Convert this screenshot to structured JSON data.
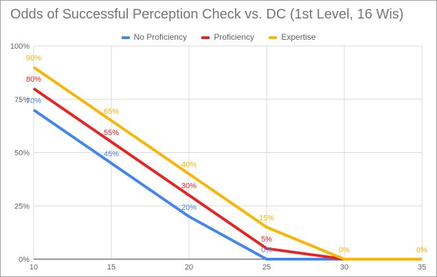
{
  "chart_data": {
    "type": "line",
    "title": "Odds of Successful Perception Check vs. DC (1st Level, 16 Wis)",
    "xlabel": "",
    "ylabel": "",
    "x": [
      10,
      15,
      20,
      25,
      30,
      35
    ],
    "xlim": [
      10,
      35
    ],
    "ylim": [
      0,
      100
    ],
    "x_ticks": [
      "10",
      "15",
      "20",
      "25",
      "30",
      "35"
    ],
    "y_ticks": [
      "0%",
      "25%",
      "50%",
      "75%",
      "100%"
    ],
    "grid": true,
    "legend_position": "top",
    "series": [
      {
        "name": "No Proficiency",
        "color": "#4285f4",
        "values": [
          70,
          45,
          20,
          0,
          0,
          0
        ],
        "labels": [
          "70%",
          "45%",
          "20%",
          "0%",
          null,
          null
        ]
      },
      {
        "name": "Proficiency",
        "color": "#ea2222",
        "values": [
          80,
          55,
          30,
          5,
          0,
          0
        ],
        "labels": [
          "80%",
          "55%",
          "30%",
          "5%",
          null,
          null
        ]
      },
      {
        "name": "Expertise",
        "color": "#fbb400",
        "values": [
          90,
          65,
          40,
          15,
          0,
          0
        ],
        "labels": [
          "90%",
          "65%",
          "40%",
          "15%",
          "0%",
          "0%"
        ]
      }
    ]
  }
}
